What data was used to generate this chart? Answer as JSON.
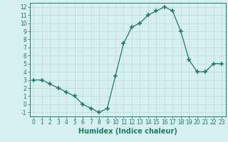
{
  "x": [
    0,
    1,
    2,
    3,
    4,
    5,
    6,
    7,
    8,
    9,
    10,
    11,
    12,
    13,
    14,
    15,
    16,
    17,
    18,
    19,
    20,
    21,
    22,
    23
  ],
  "y": [
    3,
    3,
    2.5,
    2,
    1.5,
    1,
    0,
    -0.5,
    -1,
    -0.5,
    3.5,
    7.5,
    9.5,
    10,
    11,
    11.5,
    12,
    11.5,
    9,
    5.5,
    4,
    4,
    5,
    5
  ],
  "line_color": "#1a7a6e",
  "marker": "+",
  "marker_size": 4,
  "bg_color": "#d6f0ee",
  "grid_color": "#c4dbd8",
  "xlabel": "Humidex (Indice chaleur)",
  "xlim": [
    -0.5,
    23.5
  ],
  "ylim": [
    -1.5,
    12.5
  ],
  "yticks": [
    -1,
    0,
    1,
    2,
    3,
    4,
    5,
    6,
    7,
    8,
    9,
    10,
    11,
    12
  ],
  "xticks": [
    0,
    1,
    2,
    3,
    4,
    5,
    6,
    7,
    8,
    9,
    10,
    11,
    12,
    13,
    14,
    15,
    16,
    17,
    18,
    19,
    20,
    21,
    22,
    23
  ],
  "label_fontsize": 7,
  "tick_fontsize": 5.5
}
